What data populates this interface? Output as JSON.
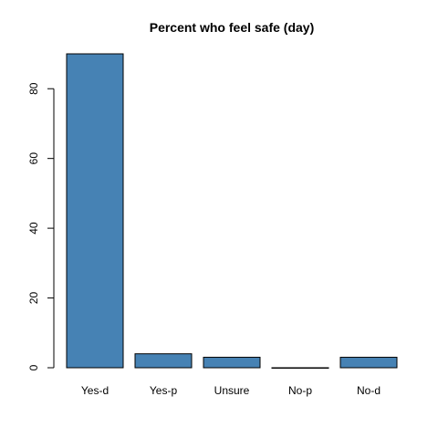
{
  "chart_data": {
    "type": "bar",
    "title": "Percent who feel safe (day)",
    "xlabel": "",
    "ylabel": "",
    "categories": [
      "Yes-d",
      "Yes-p",
      "Unsure",
      "No-p",
      "No-d"
    ],
    "values": [
      90,
      4,
      3,
      0,
      3
    ],
    "ylim": [
      0,
      90
    ],
    "yticks": [
      0,
      20,
      40,
      60,
      80
    ],
    "bar_color": "#4682b4",
    "grid": false
  }
}
